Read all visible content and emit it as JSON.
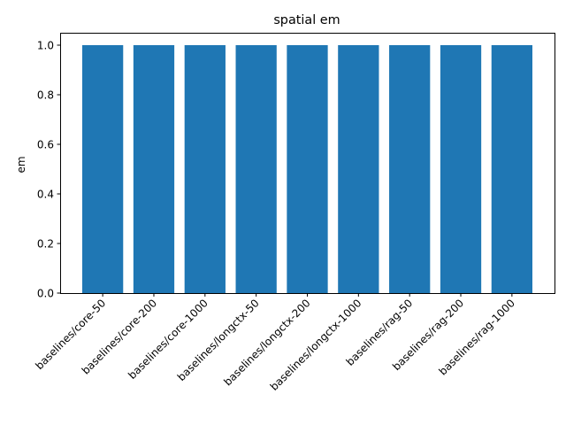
{
  "chart_data": {
    "type": "bar",
    "title": "spatial em",
    "xlabel": "",
    "ylabel": "em",
    "categories": [
      "baselines/core-50",
      "baselines/core-200",
      "baselines/core-1000",
      "baselines/longctx-50",
      "baselines/longctx-200",
      "baselines/longctx-1000",
      "baselines/rag-50",
      "baselines/rag-200",
      "baselines/rag-1000"
    ],
    "values": [
      1.0,
      1.0,
      1.0,
      1.0,
      1.0,
      1.0,
      1.0,
      1.0,
      1.0
    ],
    "ylim": [
      0,
      1.05
    ],
    "yticks": [
      "0.0",
      "0.2",
      "0.4",
      "0.6",
      "0.8",
      "1.0"
    ],
    "grid": false,
    "legend": "none",
    "bar_color": "#1f77b4"
  }
}
